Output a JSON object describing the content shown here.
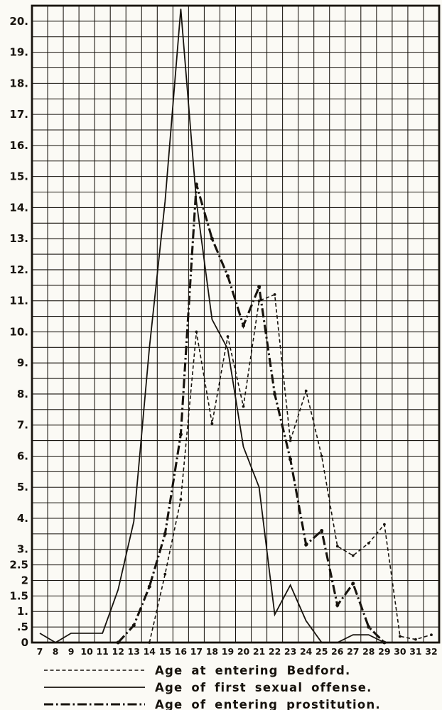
{
  "figure": {
    "paper_color": "#fbfaf5",
    "ink_color": "#17130d"
  },
  "chart_data": {
    "type": "line",
    "title": "",
    "xlabel": "",
    "ylabel": "",
    "xlim": [
      7,
      32
    ],
    "ylim": [
      0,
      20.5
    ],
    "grid": "square grid, 1 age per column, 0.5 units per row, grid on",
    "legend_position": "bottom-left below axis",
    "x_ticks": [
      7,
      8,
      9,
      10,
      11,
      12,
      13,
      14,
      15,
      16,
      17,
      18,
      19,
      20,
      21,
      22,
      23,
      24,
      25,
      26,
      27,
      28,
      29,
      30,
      31,
      32
    ],
    "y_ticks": [
      {
        "value": 20,
        "label": "20."
      },
      {
        "value": 19,
        "label": "19."
      },
      {
        "value": 18,
        "label": "18."
      },
      {
        "value": 17,
        "label": "17."
      },
      {
        "value": 16,
        "label": "16."
      },
      {
        "value": 15,
        "label": "15."
      },
      {
        "value": 14,
        "label": "14."
      },
      {
        "value": 13,
        "label": "13."
      },
      {
        "value": 12,
        "label": "12."
      },
      {
        "value": 11,
        "label": "11."
      },
      {
        "value": 10,
        "label": "10."
      },
      {
        "value": 9,
        "label": "9."
      },
      {
        "value": 8,
        "label": "8."
      },
      {
        "value": 7,
        "label": "7."
      },
      {
        "value": 6,
        "label": "6."
      },
      {
        "value": 5,
        "label": "5."
      },
      {
        "value": 4,
        "label": "4."
      },
      {
        "value": 3,
        "label": "3."
      },
      {
        "value": 2.5,
        "label": "2.5"
      },
      {
        "value": 2,
        "label": "2"
      },
      {
        "value": 1.5,
        "label": "1.5"
      },
      {
        "value": 1,
        "label": "1."
      },
      {
        "value": 0.5,
        "label": ".5"
      },
      {
        "value": 0,
        "label": "0"
      }
    ],
    "series": [
      {
        "name": "Age at entering Bedford.",
        "style": "dashed",
        "markers": true,
        "x": [
          14,
          15,
          16,
          17,
          18,
          19,
          20,
          21,
          22,
          23,
          24,
          25,
          26,
          27,
          28,
          29,
          30,
          31,
          32
        ],
        "y": [
          0,
          2.2,
          4.6,
          10.0,
          7.05,
          9.85,
          7.6,
          11.0,
          11.2,
          6.5,
          8.1,
          6.0,
          3.1,
          2.8,
          3.2,
          3.8,
          0.2,
          0.1,
          0.25
        ]
      },
      {
        "name": "Age of first sexual offense.",
        "style": "solid",
        "markers": false,
        "x": [
          7,
          8,
          9,
          10,
          11,
          12,
          13,
          14,
          15,
          16,
          17,
          18,
          19,
          20,
          21,
          22,
          23,
          24,
          25,
          26,
          27,
          28,
          29
        ],
        "y": [
          0.3,
          0,
          0.3,
          0.3,
          0.3,
          1.7,
          3.9,
          9.5,
          14.2,
          20.4,
          14.2,
          10.4,
          9.45,
          6.3,
          5.0,
          0.9,
          1.85,
          0.7,
          0,
          0,
          0.25,
          0.25,
          0
        ]
      },
      {
        "name": "Age of entering prostitution.",
        "style": "dashdot",
        "markers": true,
        "x": [
          12,
          13,
          14,
          15,
          16,
          17,
          18,
          19,
          20,
          21,
          22,
          23,
          24,
          25,
          26,
          27,
          28,
          29
        ],
        "y": [
          0,
          0.55,
          1.8,
          3.5,
          6.7,
          14.75,
          13.0,
          11.8,
          10.2,
          11.45,
          8.0,
          5.9,
          3.15,
          3.6,
          1.2,
          1.9,
          0.5,
          0
        ]
      }
    ]
  },
  "legend": {
    "items": [
      {
        "label": "Age at entering Bedford.",
        "style": "dashed"
      },
      {
        "label": "Age of first sexual offense.",
        "style": "solid"
      },
      {
        "label": "Age of entering prostitution.",
        "style": "dashdot"
      }
    ]
  }
}
